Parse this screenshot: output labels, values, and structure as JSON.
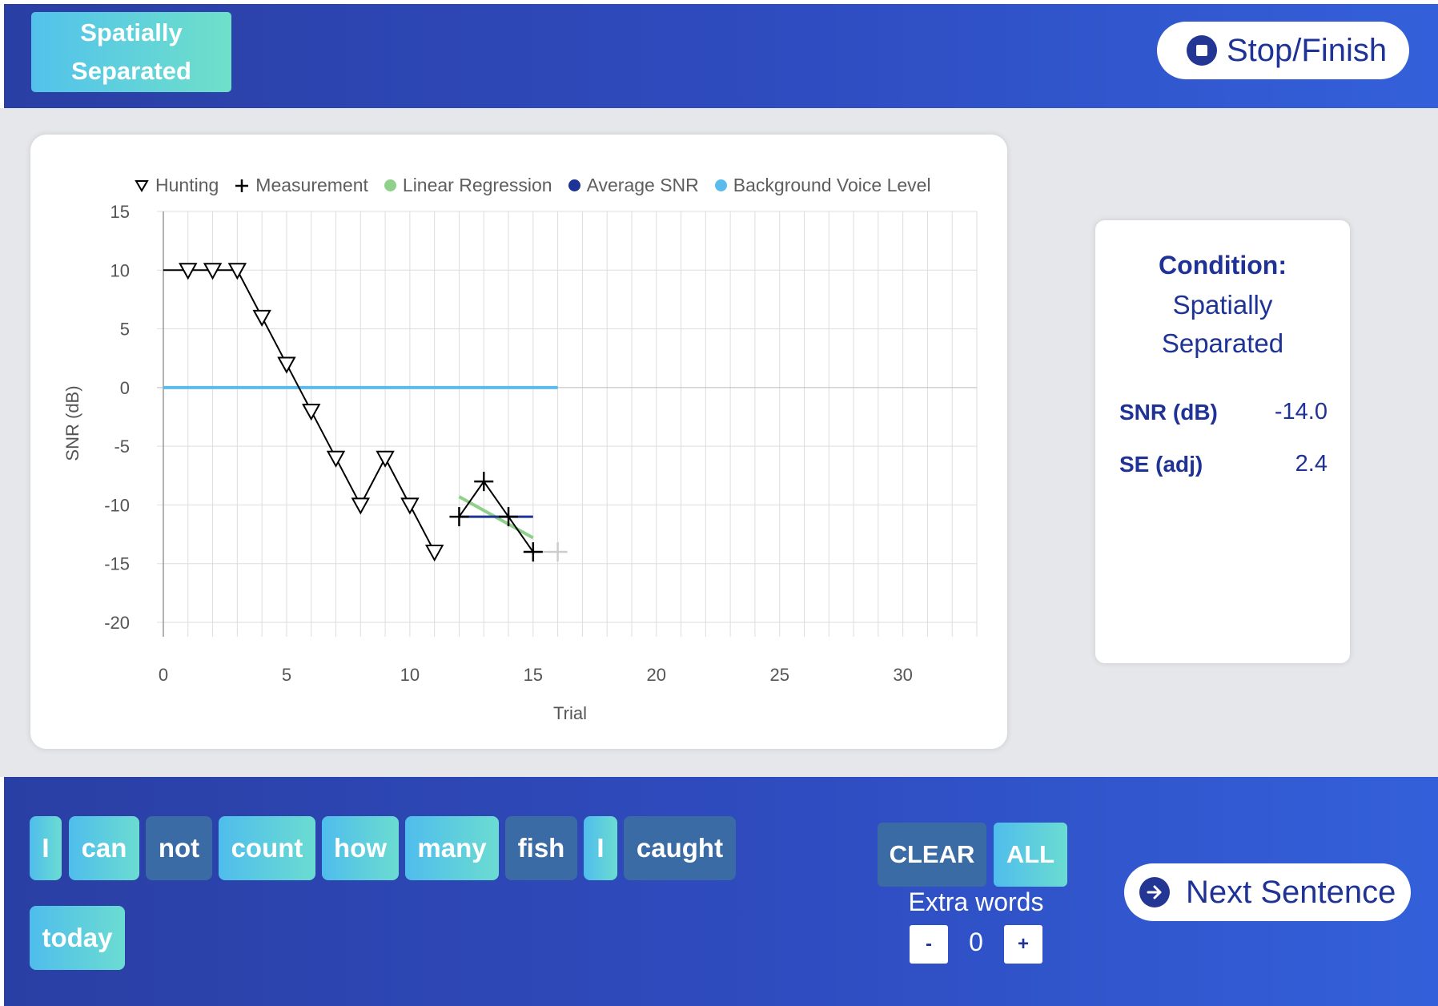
{
  "header": {
    "condition_button_line1": "Spatially",
    "condition_button_line2": "Separated",
    "stop_label": "Stop/Finish"
  },
  "legend": [
    {
      "label": "Hunting",
      "symbol": "triangle-down"
    },
    {
      "label": "Measurement",
      "symbol": "plus"
    },
    {
      "label": "Linear Regression",
      "symbol": "dot",
      "color": "#8fd18a"
    },
    {
      "label": "Average SNR",
      "symbol": "dot",
      "color": "#1f3296"
    },
    {
      "label": "Background Voice Level",
      "symbol": "dot",
      "color": "#5bbbed"
    }
  ],
  "chart_data": {
    "type": "line",
    "xlabel": "Trial",
    "ylabel": "SNR (dB)",
    "xlim": [
      0,
      33
    ],
    "ylim": [
      -20,
      15
    ],
    "xticks": [
      0,
      5,
      10,
      15,
      20,
      25,
      30
    ],
    "yticks": [
      15,
      10,
      5,
      0,
      -5,
      -10,
      -15,
      -20
    ],
    "grid": true,
    "legend_position": "top",
    "series": [
      {
        "name": "Hunting",
        "marker": "triangle-down",
        "points": [
          [
            0,
            10
          ],
          [
            1,
            10
          ],
          [
            2,
            10
          ],
          [
            3,
            10
          ],
          [
            4,
            6
          ],
          [
            5,
            2
          ],
          [
            6,
            -2
          ],
          [
            7,
            -6
          ],
          [
            8,
            -10
          ],
          [
            9,
            -6
          ],
          [
            10,
            -10
          ],
          [
            11,
            -14
          ]
        ]
      },
      {
        "name": "Measurement",
        "marker": "plus",
        "points": [
          [
            12,
            -11
          ],
          [
            13,
            -8
          ],
          [
            14,
            -11
          ],
          [
            15,
            -14
          ]
        ]
      },
      {
        "name": "Measurement (next)",
        "marker": "plus",
        "color": "#cccccc",
        "points": [
          [
            16,
            -14
          ]
        ]
      },
      {
        "name": "Linear Regression",
        "color": "#8fd18a",
        "points": [
          [
            12,
            -9.3
          ],
          [
            15,
            -12.8
          ]
        ]
      },
      {
        "name": "Average SNR",
        "color": "#1f3296",
        "points": [
          [
            12,
            -11
          ],
          [
            15,
            -11
          ]
        ]
      },
      {
        "name": "Background Voice Level",
        "color": "#5bbbed",
        "points": [
          [
            0,
            0
          ],
          [
            16,
            0
          ]
        ]
      }
    ]
  },
  "info": {
    "condition_title": "Condition:",
    "condition_line1": "Spatially",
    "condition_line2": "Separated",
    "snr_label": "SNR (dB)",
    "snr_value": "-14.0",
    "se_label": "SE (adj)",
    "se_value": "2.4"
  },
  "words": [
    {
      "text": "I",
      "state": "on"
    },
    {
      "text": "can",
      "state": "on"
    },
    {
      "text": "not",
      "state": "off"
    },
    {
      "text": "count",
      "state": "on"
    },
    {
      "text": "how",
      "state": "on"
    },
    {
      "text": "many",
      "state": "on"
    },
    {
      "text": "fish",
      "state": "off"
    },
    {
      "text": "I",
      "state": "on"
    },
    {
      "text": "caught",
      "state": "off"
    },
    {
      "text": "today",
      "state": "on"
    }
  ],
  "controls": {
    "clear_label": "CLEAR",
    "all_label": "ALL",
    "extra_words_label": "Extra words",
    "minus_label": "-",
    "plus_label": "+",
    "extra_words_value": "0",
    "next_label": "Next Sentence"
  },
  "colors": {
    "header_bg": "#2f4cc0",
    "accent_navy": "#1f3296",
    "word_selected": "#52c2ec",
    "word_unselected": "#3b6ba4"
  }
}
